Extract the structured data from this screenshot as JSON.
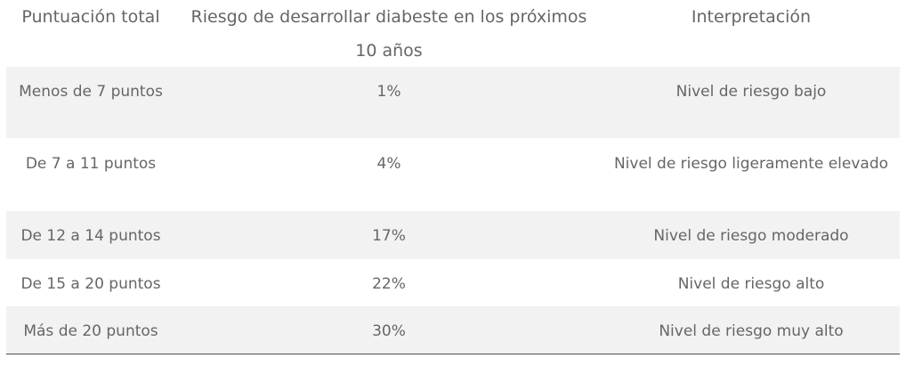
{
  "headers": [
    "Puntuación total",
    "Riesgo de desarrollar diabeste en los próximos 10 años",
    "Interpretación"
  ],
  "rows": [
    {
      "score": "Menos de 7 puntos",
      "risk": "1%",
      "interpretation": "Nivel de riesgo bajo",
      "shaded": true
    },
    {
      "score": "De 7 a 11 puntos",
      "risk": "4%",
      "interpretation": "Nivel de riesgo ligeramente elevado",
      "shaded": false
    },
    {
      "score": "De 12 a 14 puntos",
      "risk": "17%",
      "interpretation": "Nivel de riesgo moderado",
      "shaded": true
    },
    {
      "score": "De 15 a 20 puntos",
      "risk": "22%",
      "interpretation": "Nivel de riesgo alto",
      "shaded": false
    },
    {
      "score": "Más de 20 puntos",
      "risk": "30%",
      "interpretation": "Nivel de riesgo muy alto",
      "shaded": true
    }
  ],
  "colors": {
    "text": "#666666",
    "shaded_row": "#f2f2f2",
    "bottom_rule": "#555555"
  }
}
